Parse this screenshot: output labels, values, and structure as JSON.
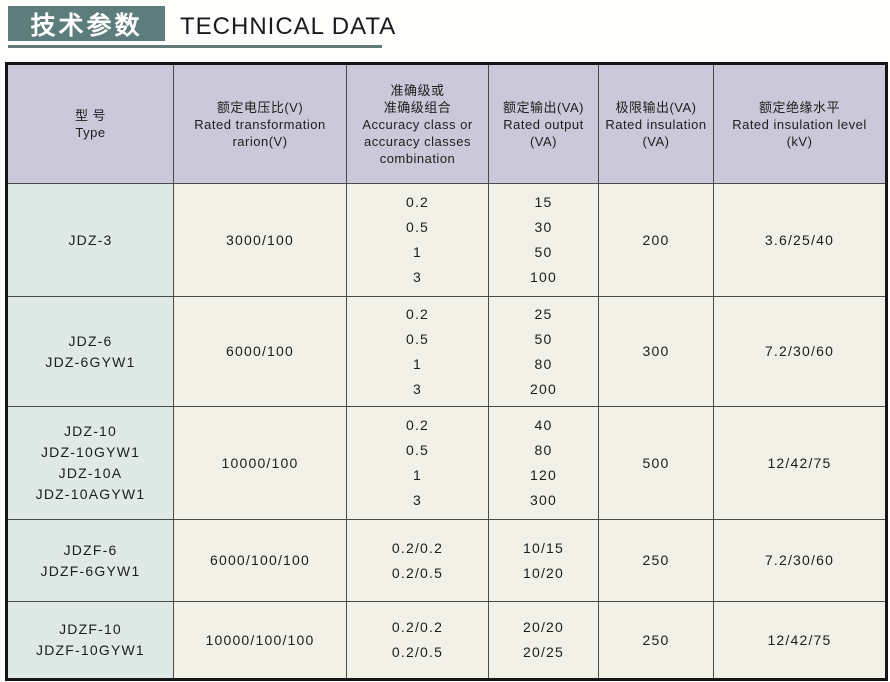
{
  "page_title": {
    "zh": "技术参数",
    "en": "TECHNICAL DATA"
  },
  "table": {
    "columns": [
      {
        "key": "type",
        "header_lines": [
          "型  号",
          "Type"
        ]
      },
      {
        "key": "voltage_ratio",
        "header_lines": [
          "额定电压比(V)",
          "Rated transformation",
          "rarion(V)"
        ]
      },
      {
        "key": "accuracy_class",
        "header_lines": [
          "准确级或",
          "准确级组合",
          "Accuracy class or",
          "accuracy classes",
          "combination"
        ]
      },
      {
        "key": "rated_output",
        "header_lines": [
          "额定输出(VA)",
          "Rated output",
          "(VA)"
        ]
      },
      {
        "key": "limit_output",
        "header_lines": [
          "极限输出(VA)",
          "Rated insulation",
          "(VA)"
        ]
      },
      {
        "key": "insulation_level",
        "header_lines": [
          "额定绝缘水平",
          "Rated insulation level",
          "(kV)"
        ]
      }
    ],
    "rows": [
      {
        "type": [
          "JDZ-3"
        ],
        "voltage_ratio": [
          "3000/100"
        ],
        "accuracy_class": [
          "0.2",
          "0.5",
          "1",
          "3"
        ],
        "rated_output": [
          "15",
          "30",
          "50",
          "100"
        ],
        "limit_output": [
          "200"
        ],
        "insulation_level": [
          "3.6/25/40"
        ]
      },
      {
        "type": [
          "JDZ-6",
          "JDZ-6GYW1"
        ],
        "voltage_ratio": [
          "6000/100"
        ],
        "accuracy_class": [
          "0.2",
          "0.5",
          "1",
          "3"
        ],
        "rated_output": [
          "25",
          "50",
          "80",
          "200"
        ],
        "limit_output": [
          "300"
        ],
        "insulation_level": [
          "7.2/30/60"
        ]
      },
      {
        "type": [
          "JDZ-10",
          "JDZ-10GYW1",
          "JDZ-10A",
          "JDZ-10AGYW1"
        ],
        "voltage_ratio": [
          "10000/100"
        ],
        "accuracy_class": [
          "0.2",
          "0.5",
          "1",
          "3"
        ],
        "rated_output": [
          "40",
          "80",
          "120",
          "300"
        ],
        "limit_output": [
          "500"
        ],
        "insulation_level": [
          "12/42/75"
        ]
      },
      {
        "type": [
          "JDZF-6",
          "JDZF-6GYW1"
        ],
        "voltage_ratio": [
          "6000/100/100"
        ],
        "accuracy_class": [
          "0.2/0.2",
          "0.2/0.5"
        ],
        "rated_output": [
          "10/15",
          "10/20"
        ],
        "limit_output": [
          "250"
        ],
        "insulation_level": [
          "7.2/30/60"
        ]
      },
      {
        "type": [
          "JDZF-10",
          "JDZF-10GYW1"
        ],
        "voltage_ratio": [
          "10000/100/100"
        ],
        "accuracy_class": [
          "0.2/0.2",
          "0.2/0.5"
        ],
        "rated_output": [
          "20/20",
          "20/25"
        ],
        "limit_output": [
          "250"
        ],
        "insulation_level": [
          "12/42/75"
        ]
      }
    ]
  },
  "colors": {
    "title_box_bg": "#5c7d7b",
    "title_rule": "#62797a",
    "header_bg": "#cbc9d9",
    "type_col_bg": "#dfe9e6",
    "body_bg": "#f2f1e8",
    "border_dark": "#161616",
    "grid_line": "#4a4a4a"
  }
}
